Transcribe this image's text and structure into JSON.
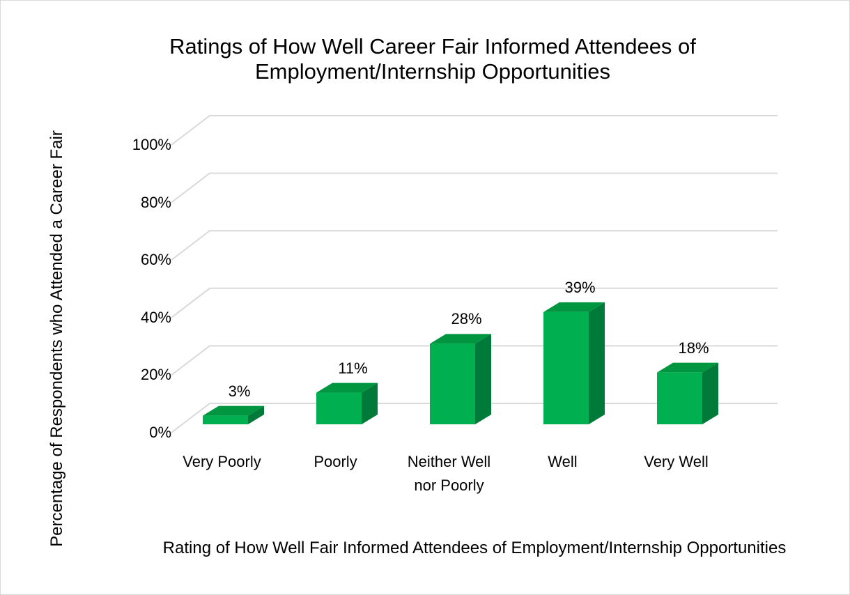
{
  "chart_data": {
    "type": "bar3d",
    "title": "Ratings of How Well Career Fair Informed Attendees of Employment/Internship Opportunities",
    "x_label": "Rating of How Well Fair Informed Attendees of Employment/Internship Opportunities",
    "y_label": "Percentage of Respondents who Attended a Career Fair",
    "categories": [
      "Very Poorly",
      "Poorly",
      "Neither Well nor Poorly",
      "Well",
      "Very Well"
    ],
    "values": [
      3,
      11,
      28,
      39,
      18
    ],
    "value_labels": [
      "3%",
      "11%",
      "28%",
      "39%",
      "18%"
    ],
    "color": "#00b050",
    "ylim": [
      0,
      100
    ],
    "yticks": [
      {
        "value": 0,
        "label": "0%"
      },
      {
        "value": 20,
        "label": "20%"
      },
      {
        "value": 40,
        "label": "40%"
      },
      {
        "value": 60,
        "label": "60%"
      },
      {
        "value": 80,
        "label": "80%"
      },
      {
        "value": 100,
        "label": "100%"
      }
    ],
    "grid": true
  }
}
